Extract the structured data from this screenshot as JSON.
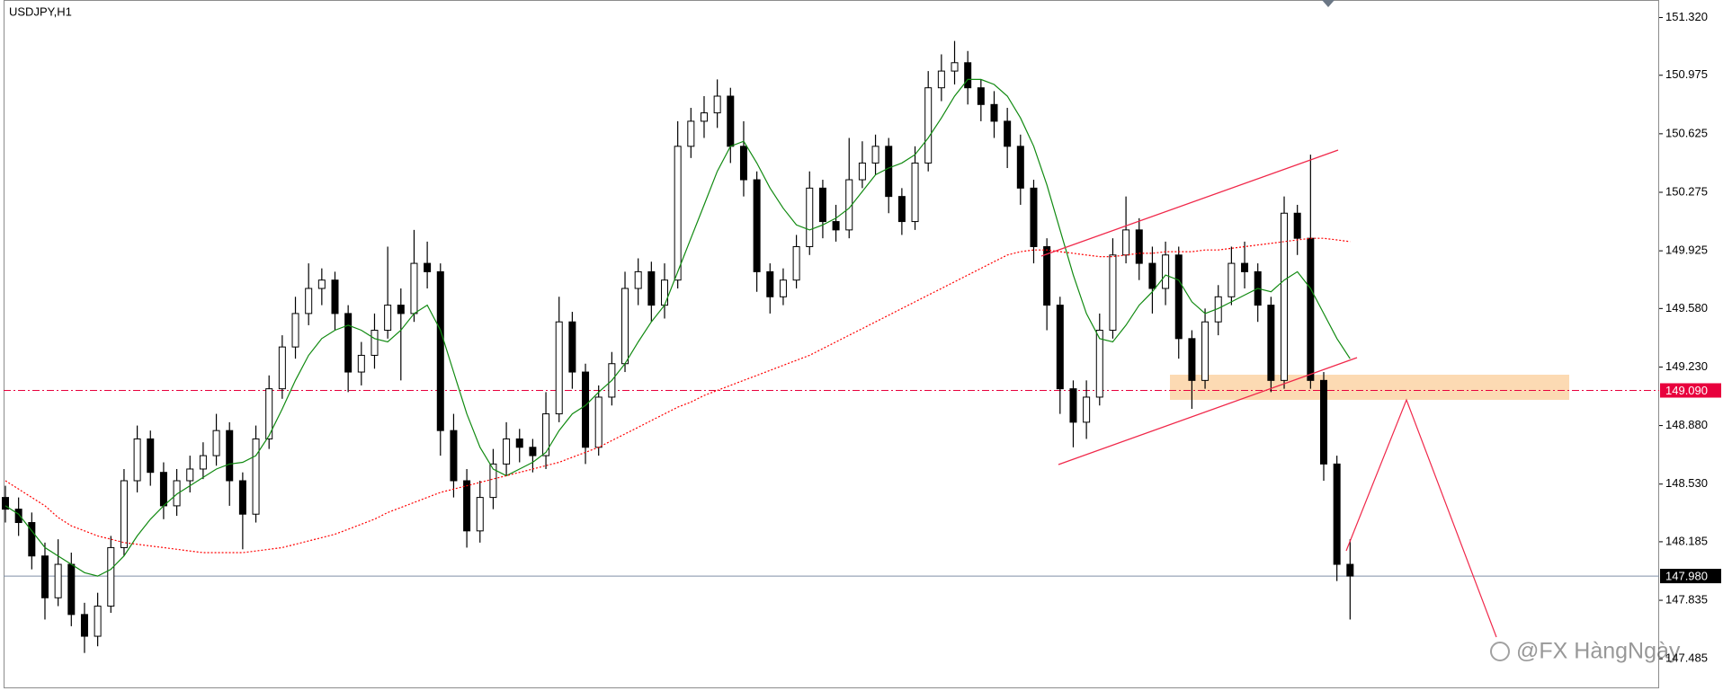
{
  "chart_data": {
    "type": "candlestick",
    "title": "USDJPY,H1",
    "watermark": "@FX HàngNgày",
    "up_color": "#ffffff",
    "down_color": "#000000",
    "outline_color": "#000000",
    "grid": false,
    "ylim": [
      147.314,
      151.425
    ],
    "yticks": [
      {
        "value": 151.32,
        "label": "151.320"
      },
      {
        "value": 150.975,
        "label": "150.975"
      },
      {
        "value": 150.625,
        "label": "150.625"
      },
      {
        "value": 150.275,
        "label": "150.275"
      },
      {
        "value": 149.925,
        "label": "149.925"
      },
      {
        "value": 149.58,
        "label": "149.580"
      },
      {
        "value": 149.23,
        "label": "149.230"
      },
      {
        "value": 148.88,
        "label": "148.880"
      },
      {
        "value": 148.53,
        "label": "148.530"
      },
      {
        "value": 148.185,
        "label": "148.185"
      },
      {
        "value": 147.835,
        "label": "147.835"
      },
      {
        "value": 147.485,
        "label": "147.485"
      }
    ],
    "open": [
      148.45,
      148.38,
      148.3,
      148.1,
      147.85,
      148.05,
      147.75,
      147.62,
      147.8,
      148.15,
      148.55,
      148.8,
      148.6,
      148.4,
      148.55,
      148.62,
      148.7,
      148.85,
      148.55,
      148.35,
      148.8,
      149.1,
      149.35,
      149.55,
      149.7,
      149.75,
      149.55,
      149.2,
      149.3,
      149.45,
      149.6,
      149.55,
      149.85,
      149.8,
      148.85,
      148.55,
      148.25,
      148.45,
      148.65,
      148.8,
      148.75,
      148.7,
      148.95,
      149.5,
      149.2,
      148.75,
      149.05,
      149.25,
      149.7,
      149.8,
      149.6,
      149.75,
      150.55,
      150.7,
      150.75,
      150.85,
      150.55,
      150.35,
      149.8,
      149.65,
      149.75,
      149.95,
      150.3,
      150.1,
      150.05,
      150.35,
      150.45,
      150.55,
      150.25,
      150.1,
      150.45,
      150.9,
      151.0,
      151.05,
      150.9,
      150.8,
      150.7,
      150.55,
      150.3,
      149.95,
      149.6,
      149.1,
      148.9,
      149.05,
      149.45,
      149.9,
      150.05,
      149.85,
      149.7,
      149.9,
      149.4,
      149.15,
      149.5,
      149.65,
      149.85,
      149.8,
      149.6,
      149.15,
      150.15,
      150.0,
      149.15,
      148.65,
      148.05
    ],
    "high": [
      148.52,
      148.45,
      148.36,
      148.18,
      148.2,
      148.12,
      147.82,
      147.88,
      148.22,
      148.62,
      148.88,
      148.85,
      148.66,
      148.62,
      148.7,
      148.78,
      148.95,
      148.9,
      148.6,
      148.88,
      149.18,
      149.42,
      149.65,
      149.85,
      149.82,
      149.8,
      149.6,
      149.38,
      149.55,
      149.95,
      149.7,
      150.05,
      149.98,
      149.85,
      148.95,
      148.62,
      148.55,
      148.74,
      148.9,
      148.86,
      148.8,
      149.08,
      149.65,
      149.56,
      149.25,
      149.12,
      149.32,
      149.8,
      149.88,
      149.86,
      149.85,
      150.7,
      150.78,
      150.85,
      150.95,
      150.9,
      150.7,
      150.4,
      149.85,
      149.82,
      150.02,
      150.4,
      150.35,
      150.2,
      150.6,
      150.58,
      150.62,
      150.6,
      150.3,
      150.55,
      151.0,
      151.1,
      151.18,
      151.12,
      150.95,
      150.88,
      150.78,
      150.62,
      150.35,
      150.0,
      149.65,
      149.15,
      149.15,
      149.55,
      150.0,
      150.25,
      150.12,
      149.95,
      149.98,
      149.95,
      149.45,
      149.58,
      149.72,
      149.95,
      149.98,
      149.85,
      149.65,
      150.25,
      150.2,
      150.5,
      149.2,
      148.7,
      148.2
    ],
    "low": [
      148.3,
      148.22,
      148.02,
      147.72,
      147.8,
      147.68,
      147.52,
      147.56,
      147.76,
      148.1,
      148.48,
      148.52,
      148.32,
      148.34,
      148.48,
      148.56,
      148.64,
      148.4,
      148.14,
      148.3,
      148.74,
      149.04,
      149.28,
      149.48,
      149.6,
      149.45,
      149.08,
      149.12,
      149.22,
      149.4,
      149.15,
      149.5,
      149.7,
      148.7,
      148.45,
      148.15,
      148.18,
      148.38,
      148.58,
      148.66,
      148.6,
      148.62,
      148.9,
      149.1,
      148.65,
      148.7,
      149.0,
      149.2,
      149.6,
      149.5,
      149.52,
      149.7,
      150.48,
      150.6,
      150.66,
      150.45,
      150.25,
      149.68,
      149.55,
      149.6,
      149.7,
      149.9,
      150.0,
      149.98,
      150.0,
      150.3,
      150.38,
      150.15,
      150.02,
      150.05,
      150.4,
      150.82,
      150.92,
      150.8,
      150.7,
      150.6,
      150.42,
      150.2,
      149.85,
      149.45,
      148.95,
      148.75,
      148.8,
      149.0,
      149.4,
      149.85,
      149.75,
      149.55,
      149.6,
      149.28,
      148.98,
      149.1,
      149.42,
      149.6,
      149.7,
      149.5,
      149.08,
      149.1,
      149.9,
      149.1,
      148.55,
      147.95,
      147.72
    ],
    "close": [
      148.38,
      148.3,
      148.1,
      147.85,
      148.05,
      147.75,
      147.62,
      147.8,
      148.15,
      148.55,
      148.8,
      148.6,
      148.4,
      148.55,
      148.62,
      148.7,
      148.85,
      148.55,
      148.35,
      148.8,
      149.1,
      149.35,
      149.55,
      149.7,
      149.75,
      149.55,
      149.2,
      149.3,
      149.45,
      149.6,
      149.55,
      149.85,
      149.8,
      148.85,
      148.55,
      148.25,
      148.45,
      148.65,
      148.8,
      148.75,
      148.7,
      148.95,
      149.5,
      149.2,
      148.75,
      149.05,
      149.25,
      149.7,
      149.8,
      149.6,
      149.75,
      150.55,
      150.7,
      150.75,
      150.85,
      150.55,
      150.35,
      149.8,
      149.65,
      149.75,
      149.95,
      150.3,
      150.1,
      150.05,
      150.35,
      150.45,
      150.55,
      150.25,
      150.1,
      150.45,
      150.9,
      151.0,
      151.05,
      150.9,
      150.8,
      150.7,
      150.55,
      150.3,
      149.95,
      149.6,
      149.1,
      148.9,
      149.05,
      149.45,
      149.9,
      150.05,
      149.85,
      149.7,
      149.9,
      149.4,
      149.15,
      149.5,
      149.65,
      149.85,
      149.8,
      149.6,
      149.15,
      150.15,
      150.0,
      149.15,
      148.65,
      148.05,
      147.98
    ],
    "lines": [
      {
        "color": "#118a11",
        "style": "solid",
        "values": [
          148.4,
          148.35,
          148.25,
          148.15,
          148.1,
          148.05,
          148.0,
          147.98,
          148.02,
          148.1,
          148.22,
          148.32,
          148.4,
          148.47,
          148.52,
          148.57,
          148.62,
          148.65,
          148.66,
          148.7,
          148.82,
          148.98,
          149.15,
          149.3,
          149.4,
          149.45,
          149.48,
          149.45,
          149.4,
          149.38,
          149.45,
          149.55,
          149.6,
          149.45,
          149.2,
          148.95,
          148.75,
          148.62,
          148.58,
          148.62,
          148.66,
          148.72,
          148.85,
          148.95,
          149.0,
          149.08,
          149.15,
          149.25,
          149.38,
          149.5,
          149.6,
          149.8,
          150.0,
          150.2,
          150.4,
          150.55,
          150.58,
          150.45,
          150.3,
          150.18,
          150.08,
          150.05,
          150.08,
          150.12,
          150.18,
          150.28,
          150.38,
          150.42,
          150.45,
          150.5,
          150.6,
          150.72,
          150.85,
          150.95,
          150.95,
          150.92,
          150.85,
          150.72,
          150.55,
          150.32,
          150.05,
          149.78,
          149.55,
          149.4,
          149.38,
          149.48,
          149.6,
          149.68,
          149.78,
          149.75,
          149.62,
          149.55,
          149.58,
          149.62,
          149.66,
          149.7,
          149.68,
          149.75,
          149.8,
          149.7,
          149.55,
          149.4,
          149.28
        ]
      },
      {
        "color": "#ff0000",
        "style": "dotted",
        "values": [
          148.55,
          148.5,
          148.45,
          148.4,
          148.33,
          148.28,
          148.25,
          148.22,
          148.2,
          148.18,
          148.17,
          148.16,
          148.15,
          148.14,
          148.13,
          148.12,
          148.12,
          148.12,
          148.12,
          148.13,
          148.14,
          148.15,
          148.17,
          148.19,
          148.21,
          148.23,
          148.26,
          148.29,
          148.32,
          148.36,
          148.39,
          148.42,
          148.45,
          148.48,
          148.5,
          148.52,
          148.54,
          148.56,
          148.58,
          148.6,
          148.62,
          148.64,
          148.66,
          148.69,
          148.72,
          148.75,
          148.79,
          148.83,
          148.87,
          148.91,
          148.95,
          148.99,
          149.02,
          149.06,
          149.09,
          149.12,
          149.15,
          149.18,
          149.21,
          149.24,
          149.27,
          149.3,
          149.34,
          149.38,
          149.42,
          149.46,
          149.5,
          149.54,
          149.58,
          149.62,
          149.66,
          149.7,
          149.74,
          149.78,
          149.82,
          149.86,
          149.9,
          149.92,
          149.93,
          149.93,
          149.92,
          149.91,
          149.9,
          149.89,
          149.89,
          149.9,
          149.91,
          149.91,
          149.92,
          149.92,
          149.92,
          149.93,
          149.93,
          149.94,
          149.95,
          149.96,
          149.97,
          149.98,
          149.99,
          150.0,
          150.0,
          149.99,
          149.98
        ]
      }
    ],
    "price_lines": [
      {
        "value": 149.09,
        "label": "149.090",
        "color": "#e8003d",
        "style": "dashdot",
        "label_bg": "#e8003d"
      },
      {
        "value": 147.98,
        "label": "147.980",
        "color": "#7f8fa6",
        "style": "solid",
        "label_bg": "#000000"
      }
    ]
  }
}
